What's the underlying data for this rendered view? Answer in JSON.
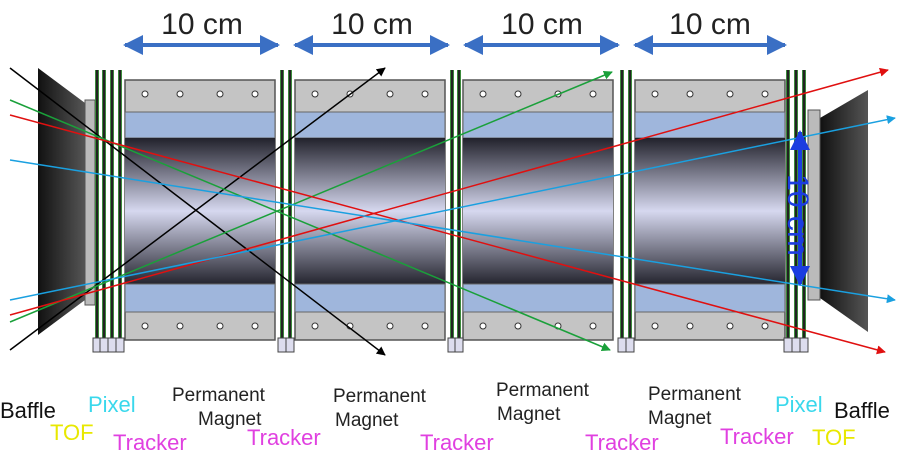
{
  "dimensions": [
    "10 cm",
    "10 cm",
    "10 cm",
    "10 cm"
  ],
  "vertical_dimension": "10 cm",
  "left": {
    "baffle": "Baffle",
    "pixel": "Pixel",
    "tof": "TOF"
  },
  "right": {
    "baffle": "Baffle",
    "pixel": "Pixel",
    "tof": "TOF"
  },
  "trackers": [
    "Tracker",
    "Tracker",
    "Tracker",
    "Tracker",
    "Tracker"
  ],
  "magnets": [
    [
      "Permanent",
      "Magnet"
    ],
    [
      "Permanent",
      "Magnet"
    ],
    [
      "Permanent",
      "Magnet"
    ],
    [
      "Permanent",
      "Magnet"
    ]
  ]
}
